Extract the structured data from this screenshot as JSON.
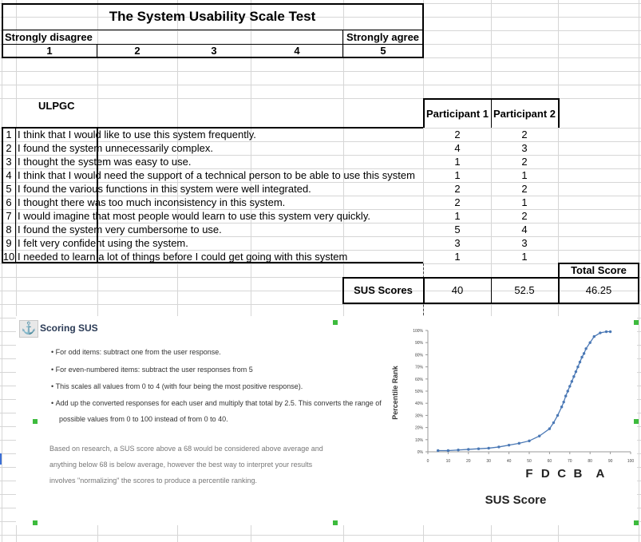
{
  "sheet": {
    "title": "The System Usability Scale Test",
    "scale_left_label": "Strongly disagree",
    "scale_right_label": "Strongly agree",
    "scale_numbers": [
      "1",
      "2",
      "3",
      "4",
      "5"
    ],
    "org_label": "ULPGC",
    "participant_headers": [
      "Participant 1",
      "Participant 2"
    ],
    "questions": [
      {
        "n": "1",
        "text": "I think that I would like to use this system frequently.",
        "p1": "2",
        "p2": "2"
      },
      {
        "n": "2",
        "text": "I found the system unnecessarily complex.",
        "p1": "4",
        "p2": "3"
      },
      {
        "n": "3",
        "text": "I thought the system was easy to use.",
        "p1": "1",
        "p2": "2"
      },
      {
        "n": "4",
        "text": "I think that I would need the support of a technical person to be able to use this system",
        "p1": "1",
        "p2": "1"
      },
      {
        "n": "5",
        "text": "I found the various functions in this system were well integrated.",
        "p1": "2",
        "p2": "2"
      },
      {
        "n": "6",
        "text": "I thought there was too much inconsistency in this system.",
        "p1": "2",
        "p2": "1"
      },
      {
        "n": "7",
        "text": "I would imagine that most people would learn to use this system very quickly.",
        "p1": "1",
        "p2": "2"
      },
      {
        "n": "8",
        "text": "I found the system very cumbersome to use.",
        "p1": "5",
        "p2": "4"
      },
      {
        "n": "9",
        "text": "I felt very confident using the system.",
        "p1": "3",
        "p2": "3"
      },
      {
        "n": "10",
        "text": "I needed to learn a lot of things before I could get going with this system",
        "p1": "1",
        "p2": "1"
      }
    ],
    "total_score_label": "Total Score",
    "sus_scores_label": "SUS Scores",
    "sus_p1": "40",
    "sus_p2": "52.5",
    "sus_total": "46.25"
  },
  "image": {
    "heading": "Scoring SUS",
    "bullets": [
      "For odd items: subtract one from the user response.",
      "For even-numbered items: subtract the user responses from 5",
      "This scales all values from 0 to 4 (with four being the most positive response).",
      "Add up the converted responses for each user and multiply that total by 2.5. This converts the range of"
    ],
    "bullet_continuation": "possible values from 0 to 100 instead of from 0 to 40.",
    "paragraph_lines": [
      "Based on research, a SUS score above a 68 would be considered above average and",
      "anything below 68 is below average, however the best way to interpret your results",
      "involves \"normalizing\" the scores to produce a percentile ranking."
    ]
  },
  "chart_data": {
    "type": "line",
    "xlabel": "SUS Score",
    "ylabel": "Percentile Rank",
    "xlim": [
      0,
      100
    ],
    "ylim": [
      0,
      100
    ],
    "x_ticks": [
      "0",
      "10",
      "20",
      "30",
      "40",
      "50",
      "60",
      "70",
      "80",
      "90",
      "100"
    ],
    "y_ticks": [
      "0%",
      "10%",
      "20%",
      "30%",
      "40%",
      "50%",
      "60%",
      "70%",
      "80%",
      "90%",
      "100%"
    ],
    "grade_labels": [
      {
        "label": "F",
        "x": 50
      },
      {
        "label": "D",
        "x": 58
      },
      {
        "label": "C",
        "x": 66
      },
      {
        "label": "B",
        "x": 74
      },
      {
        "label": "A",
        "x": 85
      }
    ],
    "line_color": "#4a78b5",
    "series": [
      {
        "x": [
          5,
          10,
          15,
          20,
          25,
          30,
          35,
          40,
          45,
          50,
          55,
          60,
          62,
          64,
          66,
          67,
          68,
          69,
          70,
          71,
          72,
          73,
          74,
          75,
          76,
          77,
          78,
          80,
          82,
          85,
          88,
          90
        ],
        "y": [
          1,
          1,
          1.5,
          2,
          2.5,
          3,
          4,
          5.5,
          7,
          9,
          13,
          19,
          24,
          30,
          37,
          41,
          46,
          50,
          54,
          58,
          62,
          66,
          70,
          74,
          78,
          81,
          85,
          90,
          95,
          98,
          99,
          99
        ]
      }
    ]
  }
}
